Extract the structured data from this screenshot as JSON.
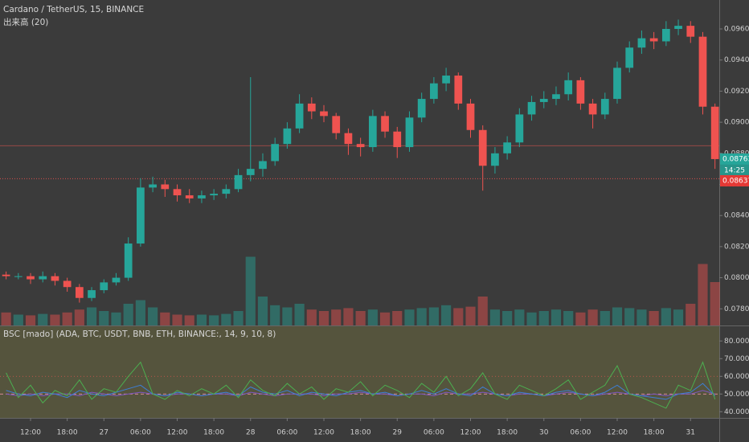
{
  "chart_data": [
    {
      "type": "candlestick",
      "title": "Cardano / TetherUS, 15, BINANCE",
      "subtitle": "出来高 (20)",
      "x": [
        8,
        10,
        12,
        14,
        16,
        18,
        20,
        22,
        24,
        26,
        28,
        30,
        32,
        34,
        36,
        38,
        40,
        42,
        44,
        46,
        48,
        50,
        52,
        54,
        56,
        58,
        60,
        62,
        64,
        66,
        68,
        70,
        72,
        74,
        76,
        78,
        80,
        82,
        84,
        86,
        88,
        90,
        92,
        94,
        96,
        98,
        100,
        102,
        104,
        106,
        108,
        110,
        112,
        114,
        116,
        118,
        120,
        122,
        124
      ],
      "open": [
        0.0802,
        0.0801,
        0.0801,
        0.0799,
        0.0801,
        0.0798,
        0.0794,
        0.0787,
        0.0792,
        0.0797,
        0.08,
        0.0822,
        0.0858,
        0.086,
        0.0857,
        0.0853,
        0.0851,
        0.0853,
        0.0854,
        0.0857,
        0.0866,
        0.087,
        0.0875,
        0.0886,
        0.0896,
        0.0912,
        0.0907,
        0.0904,
        0.0893,
        0.0886,
        0.0884,
        0.0904,
        0.0894,
        0.0884,
        0.0903,
        0.0915,
        0.0925,
        0.093,
        0.0912,
        0.0895,
        0.0872,
        0.088,
        0.0887,
        0.0905,
        0.0913,
        0.0915,
        0.0918,
        0.0927,
        0.0912,
        0.0905,
        0.0915,
        0.0935,
        0.0948,
        0.0954,
        0.0952,
        0.096,
        0.0962,
        0.0955,
        0.091
      ],
      "high": [
        0.0804,
        0.0803,
        0.0803,
        0.0804,
        0.0803,
        0.08,
        0.0796,
        0.0794,
        0.0799,
        0.0803,
        0.0826,
        0.0864,
        0.0865,
        0.0863,
        0.086,
        0.0857,
        0.0856,
        0.0857,
        0.086,
        0.087,
        0.0929,
        0.088,
        0.089,
        0.09,
        0.0918,
        0.0916,
        0.0911,
        0.0906,
        0.0896,
        0.089,
        0.0908,
        0.0907,
        0.0897,
        0.0907,
        0.0919,
        0.0929,
        0.0935,
        0.0932,
        0.0915,
        0.0898,
        0.0884,
        0.0891,
        0.0909,
        0.0917,
        0.092,
        0.0923,
        0.0932,
        0.0929,
        0.0915,
        0.0919,
        0.0939,
        0.0952,
        0.0959,
        0.0958,
        0.0965,
        0.0966,
        0.0965,
        0.0958,
        0.0912
      ],
      "low": [
        0.0799,
        0.0799,
        0.0796,
        0.0797,
        0.0795,
        0.0791,
        0.0784,
        0.0785,
        0.079,
        0.0795,
        0.0798,
        0.082,
        0.0855,
        0.0852,
        0.0849,
        0.0848,
        0.0848,
        0.085,
        0.0851,
        0.0855,
        0.0862,
        0.0865,
        0.0872,
        0.0883,
        0.0893,
        0.0902,
        0.09,
        0.0889,
        0.0879,
        0.0878,
        0.0881,
        0.089,
        0.0877,
        0.0881,
        0.09,
        0.0912,
        0.092,
        0.0908,
        0.089,
        0.0856,
        0.0867,
        0.0876,
        0.0884,
        0.0901,
        0.0909,
        0.0911,
        0.0914,
        0.0908,
        0.0896,
        0.0902,
        0.0912,
        0.0932,
        0.0944,
        0.0947,
        0.0949,
        0.0956,
        0.0951,
        0.0905,
        0.087
      ],
      "close": [
        0.0801,
        0.0801,
        0.0799,
        0.0801,
        0.0798,
        0.0794,
        0.0787,
        0.0792,
        0.0797,
        0.08,
        0.0822,
        0.0858,
        0.086,
        0.0857,
        0.0853,
        0.0851,
        0.0853,
        0.0854,
        0.0857,
        0.0866,
        0.087,
        0.0875,
        0.0886,
        0.0896,
        0.0912,
        0.0907,
        0.0904,
        0.0893,
        0.0886,
        0.0884,
        0.0904,
        0.0894,
        0.0884,
        0.0903,
        0.0915,
        0.0925,
        0.093,
        0.0912,
        0.0895,
        0.0872,
        0.088,
        0.0887,
        0.0905,
        0.0913,
        0.0915,
        0.0918,
        0.0927,
        0.0912,
        0.0905,
        0.0915,
        0.0935,
        0.0948,
        0.0954,
        0.0952,
        0.096,
        0.0962,
        0.0955,
        0.091,
        0.08763
      ],
      "volume": [
        18,
        15,
        14,
        16,
        15,
        18,
        22,
        25,
        20,
        18,
        30,
        35,
        25,
        18,
        15,
        14,
        15,
        14,
        16,
        20,
        95,
        40,
        28,
        25,
        30,
        22,
        20,
        22,
        24,
        20,
        22,
        18,
        20,
        22,
        24,
        25,
        28,
        24,
        26,
        40,
        22,
        20,
        22,
        18,
        20,
        22,
        20,
        18,
        22,
        20,
        25,
        24,
        22,
        20,
        24,
        22,
        30,
        85,
        60
      ],
      "volume_ylim": [
        0,
        450
      ],
      "up_color": "#26a69a",
      "down_color": "#ef5350",
      "xlim": [
        7,
        124.7
      ],
      "xticks": [
        {
          "value": 12,
          "label": "12:00"
        },
        {
          "value": 18,
          "label": "18:00"
        },
        {
          "value": 24,
          "label": "27"
        },
        {
          "value": 30,
          "label": "06:00"
        },
        {
          "value": 36,
          "label": "12:00"
        },
        {
          "value": 42,
          "label": "18:00"
        },
        {
          "value": 48,
          "label": "28"
        },
        {
          "value": 54,
          "label": "06:00"
        },
        {
          "value": 60,
          "label": "12:00"
        },
        {
          "value": 66,
          "label": "18:00"
        },
        {
          "value": 72,
          "label": "29"
        },
        {
          "value": 78,
          "label": "06:00"
        },
        {
          "value": 84,
          "label": "12:00"
        },
        {
          "value": 90,
          "label": "18:00"
        },
        {
          "value": 96,
          "label": "30"
        },
        {
          "value": 102,
          "label": "06:00"
        },
        {
          "value": 108,
          "label": "12:00"
        },
        {
          "value": 114,
          "label": "18:00"
        },
        {
          "value": 120,
          "label": "31"
        }
      ],
      "ylim": [
        0.07693,
        0.09786
      ],
      "yticks": [
        {
          "value": 0.078,
          "label": "0.07800"
        },
        {
          "value": 0.08,
          "label": "0.08000"
        },
        {
          "value": 0.082,
          "label": "0.08200"
        },
        {
          "value": 0.084,
          "label": "0.08400"
        },
        {
          "value": 0.086,
          "label": "0.08600"
        },
        {
          "value": 0.088,
          "label": "0.08800"
        },
        {
          "value": 0.09,
          "label": "0.09000"
        },
        {
          "value": 0.092,
          "label": "0.09200"
        },
        {
          "value": 0.094,
          "label": "0.09400"
        },
        {
          "value": 0.096,
          "label": "0.09600"
        }
      ],
      "price_line": 0.08849,
      "last_price": {
        "value": 0.08763,
        "label": "0.08763"
      },
      "countdown": "14:25",
      "alert_price": {
        "value": 0.08637,
        "label": "0.08637"
      }
    },
    {
      "type": "line",
      "title": "BSC [mado] (ADA, BTC, USDT, BNB, ETH, BINANCE:, 14, 9, 10, 8)",
      "x": [
        8,
        10,
        12,
        14,
        16,
        18,
        20,
        22,
        24,
        26,
        28,
        30,
        32,
        34,
        36,
        38,
        40,
        42,
        44,
        46,
        48,
        50,
        52,
        54,
        56,
        58,
        60,
        62,
        64,
        66,
        68,
        70,
        72,
        74,
        76,
        78,
        80,
        82,
        84,
        86,
        88,
        90,
        92,
        94,
        96,
        98,
        100,
        102,
        104,
        106,
        108,
        110,
        112,
        114,
        116,
        118,
        120,
        122,
        124
      ],
      "series": [
        {
          "color": "#7e57c2",
          "values": [
            50,
            49,
            50,
            49,
            50,
            50,
            49,
            51,
            50,
            49,
            50,
            51,
            50,
            49,
            50,
            50,
            49,
            50,
            50,
            49,
            51,
            50,
            49,
            50,
            50,
            50,
            49,
            50,
            50,
            51,
            50,
            50,
            49,
            50,
            50,
            49,
            51,
            50,
            50,
            51,
            50,
            49,
            50,
            50,
            49,
            50,
            51,
            50,
            49,
            50,
            51,
            50,
            49,
            50,
            49,
            50,
            50,
            52,
            50
          ]
        },
        {
          "color": "#3d7fd6",
          "values": [
            52,
            50,
            49,
            51,
            50,
            48,
            52,
            50,
            49,
            51,
            53,
            55,
            50,
            49,
            51,
            50,
            49,
            50,
            51,
            49,
            54,
            51,
            50,
            52,
            49,
            51,
            50,
            49,
            51,
            52,
            50,
            51,
            49,
            50,
            52,
            50,
            53,
            50,
            49,
            54,
            50,
            49,
            51,
            50,
            49,
            51,
            52,
            50,
            49,
            51,
            55,
            50,
            49,
            48,
            47,
            50,
            51,
            56,
            49
          ]
        },
        {
          "color": "#4caf50",
          "values": [
            62,
            48,
            55,
            45,
            52,
            49,
            58,
            47,
            53,
            51,
            60,
            68,
            50,
            47,
            52,
            49,
            53,
            50,
            55,
            48,
            58,
            52,
            49,
            56,
            50,
            54,
            47,
            53,
            51,
            57,
            49,
            55,
            52,
            48,
            56,
            51,
            60,
            49,
            53,
            62,
            50,
            47,
            55,
            52,
            49,
            53,
            58,
            47,
            51,
            55,
            66,
            50,
            48,
            45,
            42,
            55,
            52,
            68,
            47
          ]
        }
      ],
      "xlim": [
        7,
        124.7
      ],
      "ylim": [
        36.5,
        88.3
      ],
      "yticks": [
        {
          "value": 40,
          "label": "40.00000"
        },
        {
          "value": 50,
          "label": "50.00000"
        },
        {
          "value": 60,
          "label": "60.00000"
        },
        {
          "value": 70,
          "label": "70.00000"
        },
        {
          "value": 80,
          "label": "80.00000"
        }
      ],
      "levels": [
        60,
        50
      ]
    }
  ]
}
